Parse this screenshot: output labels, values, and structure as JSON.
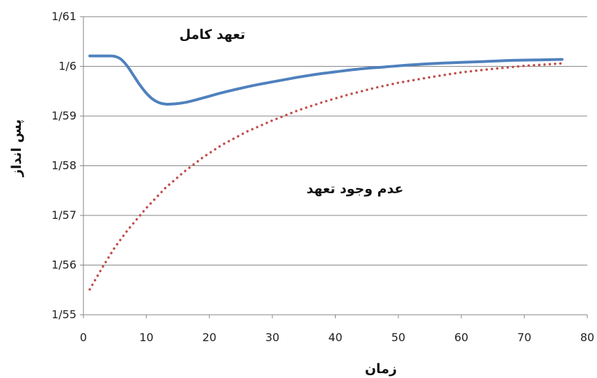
{
  "chart_data": {
    "type": "line",
    "xlabel": "زمان",
    "ylabel": "پس انداز",
    "xlim": [
      0,
      80
    ],
    "ylim": [
      1.55,
      1.61
    ],
    "x_ticks": [
      "0",
      "10",
      "20",
      "30",
      "40",
      "50",
      "60",
      "70",
      "80"
    ],
    "y_ticks": [
      "1/55",
      "1/56",
      "1/57",
      "1/58",
      "1/59",
      "1/6",
      "1/61"
    ],
    "grid": true,
    "series": [
      {
        "name": "تعهد کامل",
        "style": "solid",
        "color": "#4f81bd",
        "x": [
          1,
          2,
          3,
          4,
          5,
          6,
          7,
          8,
          9,
          10,
          11,
          12,
          13,
          14,
          16,
          18,
          20,
          22,
          25,
          28,
          31,
          34,
          37,
          40,
          44,
          48,
          52,
          56,
          60,
          64,
          68,
          72,
          76
        ],
        "y": [
          1.6021,
          1.6021,
          1.6021,
          1.6021,
          1.602,
          1.6014,
          1.6,
          1.5981,
          1.5962,
          1.5946,
          1.5934,
          1.5927,
          1.5924,
          1.5924,
          1.5927,
          1.5933,
          1.594,
          1.5947,
          1.5956,
          1.5964,
          1.5971,
          1.5978,
          1.5984,
          1.5989,
          1.5995,
          1.5999,
          1.6003,
          1.6006,
          1.6008,
          1.601,
          1.6012,
          1.6013,
          1.6014
        ]
      },
      {
        "name": "عدم وجود تعهد",
        "style": "dotted",
        "color": "#c0504d",
        "x": [
          1,
          3,
          5,
          7,
          10,
          13,
          16,
          19,
          22,
          26,
          30,
          34,
          38,
          42,
          46,
          50,
          55,
          60,
          65,
          70,
          76
        ],
        "y": [
          1.5551,
          1.5595,
          1.5636,
          1.567,
          1.5715,
          1.5755,
          1.5788,
          1.5817,
          1.5842,
          1.5869,
          1.5891,
          1.5911,
          1.5928,
          1.5943,
          1.5956,
          1.5967,
          1.5978,
          1.5988,
          1.5995,
          1.6001,
          1.6006
        ]
      }
    ],
    "annotations": [
      "تعهد کامل",
      "عدم وجود تعهد"
    ]
  }
}
